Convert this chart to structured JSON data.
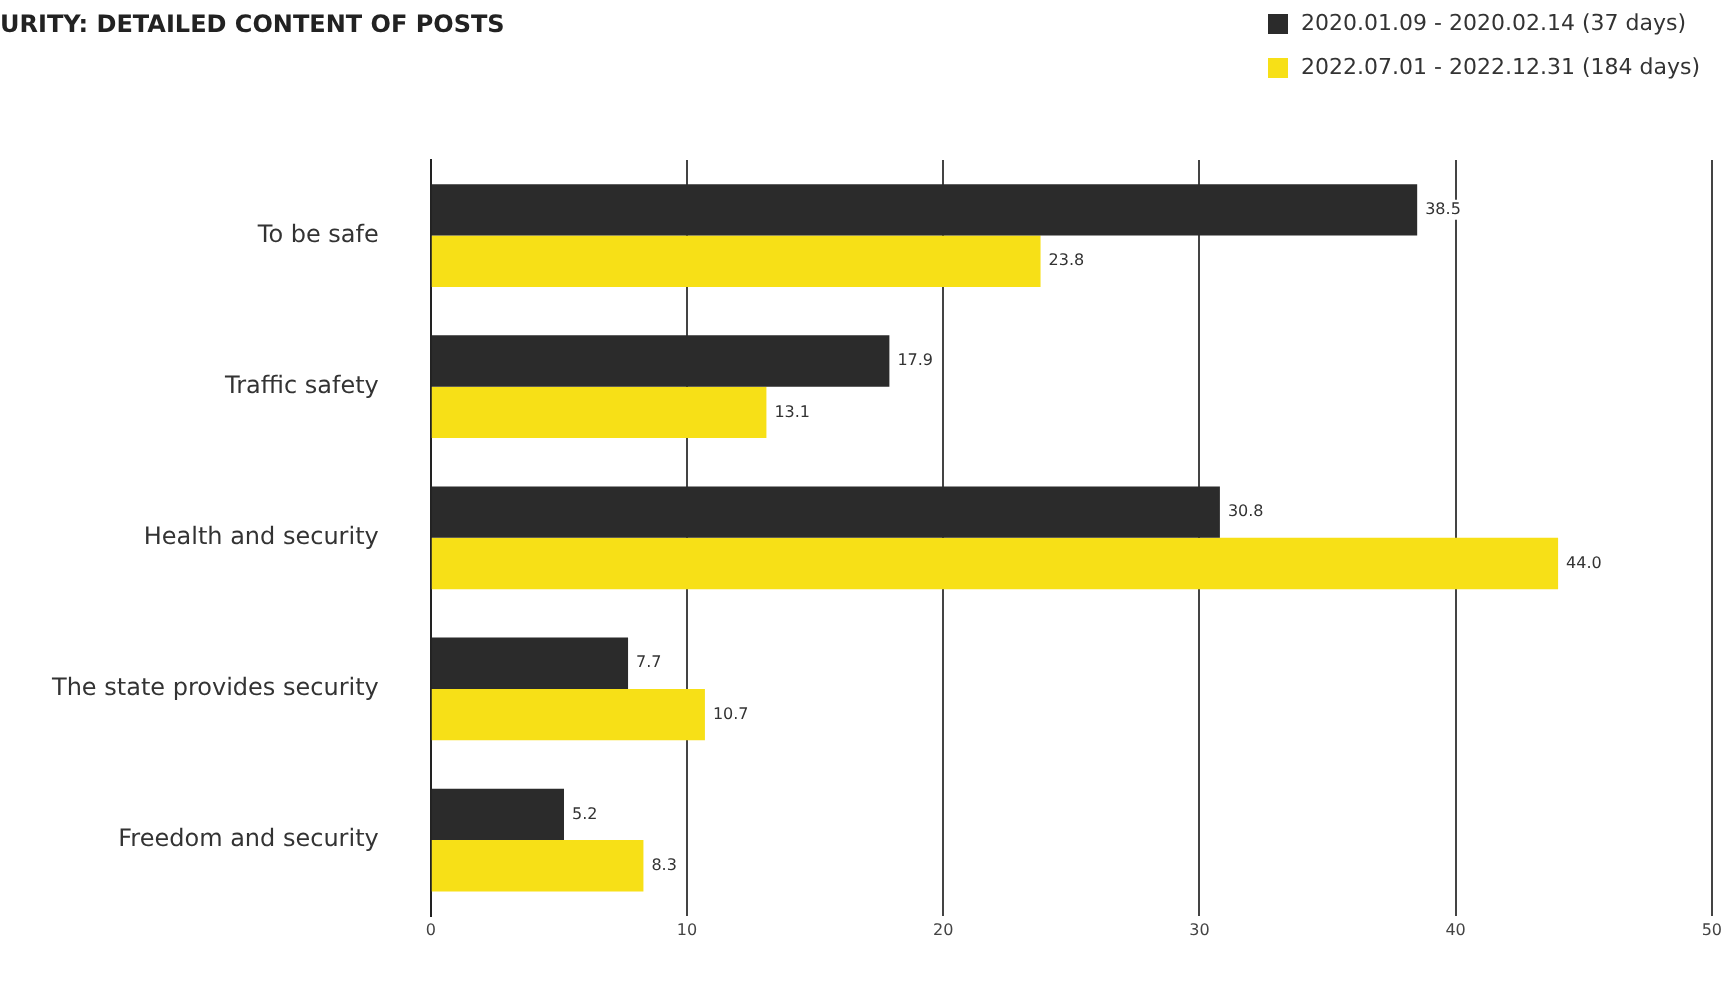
{
  "chart_data": {
    "type": "bar",
    "orientation": "horizontal",
    "title": "URITY: DETAILED CONTENT OF POSTS",
    "categories": [
      "To be safe",
      "Traffic safety",
      "Health and security",
      "The state provides security",
      "Freedom and security"
    ],
    "series": [
      {
        "name": "2020.01.09 - 2020.02.14 (37 days)",
        "color": "#2b2b2b",
        "values": [
          38.5,
          17.9,
          30.8,
          7.7,
          5.2
        ],
        "value_labels": [
          "38.5",
          "17.9",
          "30.8",
          "7.7",
          "5.2"
        ]
      },
      {
        "name": "2022.07.01 - 2022.12.31 (184 days)",
        "color": "#f7e017",
        "values": [
          23.8,
          13.1,
          44.0,
          10.7,
          8.3
        ],
        "value_labels": [
          "23.8",
          "13.1",
          "44.0",
          "10.7",
          "8.3"
        ]
      }
    ],
    "xlim": [
      0,
      50
    ],
    "xticks": [
      0,
      10,
      20,
      30,
      40,
      50
    ],
    "grid": "x",
    "legend": "top right"
  }
}
